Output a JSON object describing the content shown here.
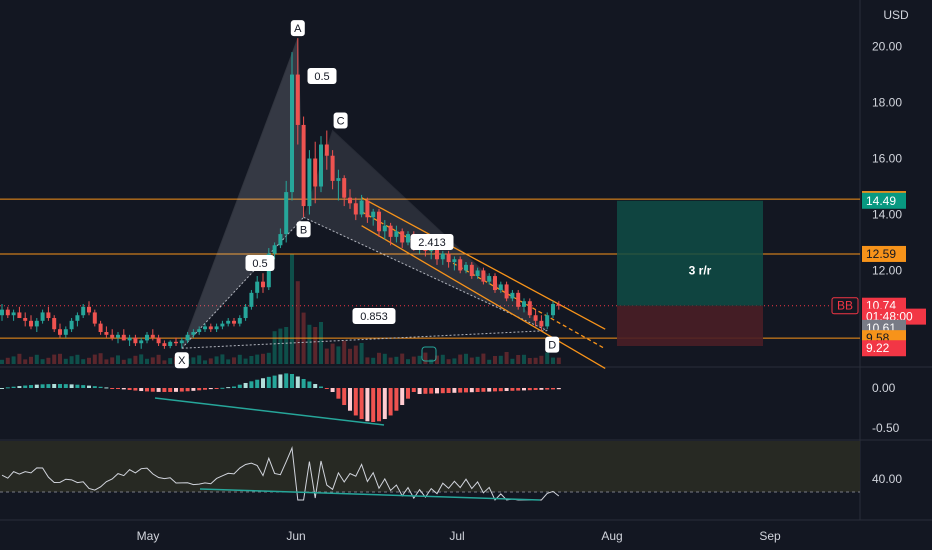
{
  "chart_data": {
    "type": "candlestick",
    "symbol_badge": "BB",
    "currency": "USD",
    "price_axis": {
      "ticks": [
        20.0,
        18.0,
        16.0,
        14.0,
        12.0
      ],
      "tick_labels": [
        "20.00",
        "18.00",
        "16.00",
        "14.00",
        "12.00"
      ],
      "ylim": [
        8.8,
        21.2
      ]
    },
    "time_axis": {
      "labels": [
        "May",
        "Jun",
        "Jul",
        "Aug",
        "Sep"
      ]
    },
    "price_tags": [
      {
        "label": "14.55",
        "value": 14.55,
        "color": "#f7931a",
        "text_color": "#131722"
      },
      {
        "label": "14.49",
        "value": 14.49,
        "color": "#089981",
        "text_color": "#ffffff"
      },
      {
        "label": "12.59",
        "value": 12.59,
        "color": "#f7931a",
        "text_color": "#131722"
      },
      {
        "label": "10.74",
        "value": 10.74,
        "color": "#f23645",
        "text_color": "#ffffff"
      },
      {
        "label": "01:48:00",
        "value": 10.35,
        "color": "#f23645",
        "text_color": "#ffffff"
      },
      {
        "label": "10.61",
        "value": 9.95,
        "color": "#787b86",
        "text_color": "#ffffff"
      },
      {
        "label": "9.58",
        "value": 9.58,
        "color": "#f7931a",
        "text_color": "#131722"
      },
      {
        "label": "9.22",
        "value": 9.22,
        "color": "#f23645",
        "text_color": "#ffffff"
      }
    ],
    "horizontal_levels": [
      14.55,
      12.59,
      9.58
    ],
    "last_price": 10.74,
    "harmonic_pattern": {
      "points": [
        {
          "label": "X",
          "day": 31,
          "price": 9.22
        },
        {
          "label": "A",
          "day": 51,
          "price": 20.3
        },
        {
          "label": "B",
          "day": 52,
          "price": 13.9
        },
        {
          "label": "C",
          "day": 57,
          "price": 17.0
        },
        {
          "label": "D",
          "day": 94,
          "price": 9.85
        }
      ],
      "ratios": [
        "0.5",
        "0.5",
        "2.413",
        "0.853"
      ]
    },
    "position_box": {
      "label": "3 r/r",
      "entry": 10.74,
      "target": 14.49,
      "stop": 9.3
    },
    "macd": {
      "ticks": [
        "0.00",
        "-0.50"
      ]
    },
    "rsi": {
      "ticks": [
        "40.00"
      ]
    },
    "candles": [
      [
        10.4,
        10.8,
        10.2,
        10.6
      ],
      [
        10.6,
        10.7,
        10.3,
        10.4
      ],
      [
        10.4,
        10.6,
        10.2,
        10.5
      ],
      [
        10.5,
        10.7,
        10.3,
        10.3
      ],
      [
        10.3,
        10.5,
        10.0,
        10.2
      ],
      [
        10.2,
        10.4,
        9.9,
        10.0
      ],
      [
        10.0,
        10.3,
        9.8,
        10.2
      ],
      [
        10.2,
        10.6,
        10.1,
        10.5
      ],
      [
        10.5,
        10.7,
        10.2,
        10.3
      ],
      [
        10.3,
        10.4,
        9.8,
        9.9
      ],
      [
        9.9,
        10.1,
        9.6,
        9.7
      ],
      [
        9.7,
        10.0,
        9.6,
        9.9
      ],
      [
        9.9,
        10.3,
        9.8,
        10.2
      ],
      [
        10.2,
        10.5,
        10.0,
        10.4
      ],
      [
        10.4,
        10.8,
        10.3,
        10.7
      ],
      [
        10.7,
        10.9,
        10.4,
        10.5
      ],
      [
        10.5,
        10.6,
        10.0,
        10.1
      ],
      [
        10.1,
        10.2,
        9.7,
        9.8
      ],
      [
        9.8,
        10.0,
        9.6,
        9.7
      ],
      [
        9.7,
        9.9,
        9.5,
        9.6
      ],
      [
        9.6,
        9.8,
        9.4,
        9.7
      ],
      [
        9.7,
        9.9,
        9.5,
        9.5
      ],
      [
        9.5,
        9.7,
        9.3,
        9.6
      ],
      [
        9.6,
        9.7,
        9.3,
        9.4
      ],
      [
        9.4,
        9.6,
        9.2,
        9.5
      ],
      [
        9.5,
        9.8,
        9.4,
        9.7
      ],
      [
        9.7,
        9.9,
        9.5,
        9.6
      ],
      [
        9.6,
        9.7,
        9.3,
        9.4
      ],
      [
        9.4,
        9.5,
        9.2,
        9.3
      ],
      [
        9.3,
        9.5,
        9.22,
        9.45
      ],
      [
        9.45,
        9.6,
        9.3,
        9.4
      ],
      [
        9.4,
        9.6,
        9.22,
        9.5
      ],
      [
        9.5,
        9.8,
        9.4,
        9.7
      ],
      [
        9.7,
        9.9,
        9.6,
        9.8
      ],
      [
        9.8,
        10.0,
        9.7,
        9.9
      ],
      [
        9.9,
        10.1,
        9.8,
        10.0
      ],
      [
        10.0,
        10.1,
        9.8,
        9.9
      ],
      [
        9.9,
        10.1,
        9.8,
        10.0
      ],
      [
        10.0,
        10.2,
        9.9,
        10.1
      ],
      [
        10.1,
        10.3,
        10.0,
        10.2
      ],
      [
        10.2,
        10.3,
        10.0,
        10.1
      ],
      [
        10.1,
        10.4,
        10.0,
        10.3
      ],
      [
        10.3,
        10.8,
        10.2,
        10.7
      ],
      [
        10.7,
        11.3,
        10.6,
        11.2
      ],
      [
        11.2,
        11.8,
        11.0,
        11.6
      ],
      [
        11.6,
        11.9,
        11.2,
        11.4
      ],
      [
        11.4,
        12.8,
        11.3,
        12.6
      ],
      [
        12.6,
        13.0,
        12.4,
        12.9
      ],
      [
        12.9,
        13.5,
        12.8,
        13.3
      ],
      [
        13.3,
        15.2,
        13.0,
        14.8
      ],
      [
        14.8,
        19.8,
        14.5,
        19.0
      ],
      [
        19.0,
        20.3,
        16.5,
        17.2
      ],
      [
        17.2,
        17.5,
        13.9,
        14.3
      ],
      [
        14.3,
        16.3,
        14.0,
        16.0
      ],
      [
        16.0,
        16.6,
        14.4,
        15.0
      ],
      [
        15.0,
        16.8,
        14.8,
        16.5
      ],
      [
        16.5,
        17.0,
        15.6,
        16.1
      ],
      [
        16.1,
        16.3,
        14.9,
        15.2
      ],
      [
        15.2,
        15.6,
        14.5,
        15.3
      ],
      [
        15.3,
        15.4,
        14.3,
        14.6
      ],
      [
        14.6,
        14.9,
        14.2,
        14.4
      ],
      [
        14.4,
        14.6,
        13.8,
        14.0
      ],
      [
        14.0,
        14.7,
        13.9,
        14.5
      ],
      [
        14.5,
        14.6,
        13.7,
        13.9
      ],
      [
        13.9,
        14.2,
        13.6,
        14.1
      ],
      [
        14.1,
        14.2,
        13.2,
        13.4
      ],
      [
        13.4,
        13.8,
        13.1,
        13.6
      ],
      [
        13.6,
        13.7,
        12.9,
        13.2
      ],
      [
        13.2,
        13.6,
        13.0,
        13.4
      ],
      [
        13.4,
        13.5,
        12.8,
        13.0
      ],
      [
        13.0,
        13.4,
        12.9,
        13.3
      ],
      [
        13.3,
        13.4,
        12.7,
        12.9
      ],
      [
        12.9,
        13.2,
        12.6,
        13.1
      ],
      [
        13.1,
        13.2,
        12.5,
        12.7
      ],
      [
        12.7,
        12.9,
        12.4,
        12.8
      ],
      [
        12.8,
        12.9,
        12.2,
        12.4
      ],
      [
        12.4,
        12.7,
        12.2,
        12.6
      ],
      [
        12.6,
        12.7,
        12.1,
        12.3
      ],
      [
        12.3,
        12.5,
        12.0,
        12.4
      ],
      [
        12.4,
        12.5,
        11.9,
        12.0
      ],
      [
        12.0,
        12.3,
        11.9,
        12.2
      ],
      [
        12.2,
        12.3,
        11.7,
        11.8
      ],
      [
        11.8,
        12.1,
        11.7,
        12.0
      ],
      [
        12.0,
        12.1,
        11.5,
        11.6
      ],
      [
        11.6,
        11.9,
        11.5,
        11.8
      ],
      [
        11.8,
        11.9,
        11.2,
        11.3
      ],
      [
        11.3,
        11.6,
        11.2,
        11.5
      ],
      [
        11.5,
        11.6,
        10.9,
        11.0
      ],
      [
        11.0,
        11.3,
        10.9,
        11.2
      ],
      [
        11.2,
        11.3,
        10.6,
        10.7
      ],
      [
        10.7,
        11.0,
        10.5,
        10.9
      ],
      [
        10.9,
        11.0,
        10.3,
        10.4
      ],
      [
        10.4,
        10.6,
        10.0,
        10.2
      ],
      [
        10.2,
        10.4,
        9.85,
        10.0
      ],
      [
        10.0,
        10.5,
        9.9,
        10.4
      ],
      [
        10.4,
        10.9,
        10.3,
        10.8
      ],
      [
        10.8,
        10.9,
        10.6,
        10.74
      ]
    ]
  }
}
